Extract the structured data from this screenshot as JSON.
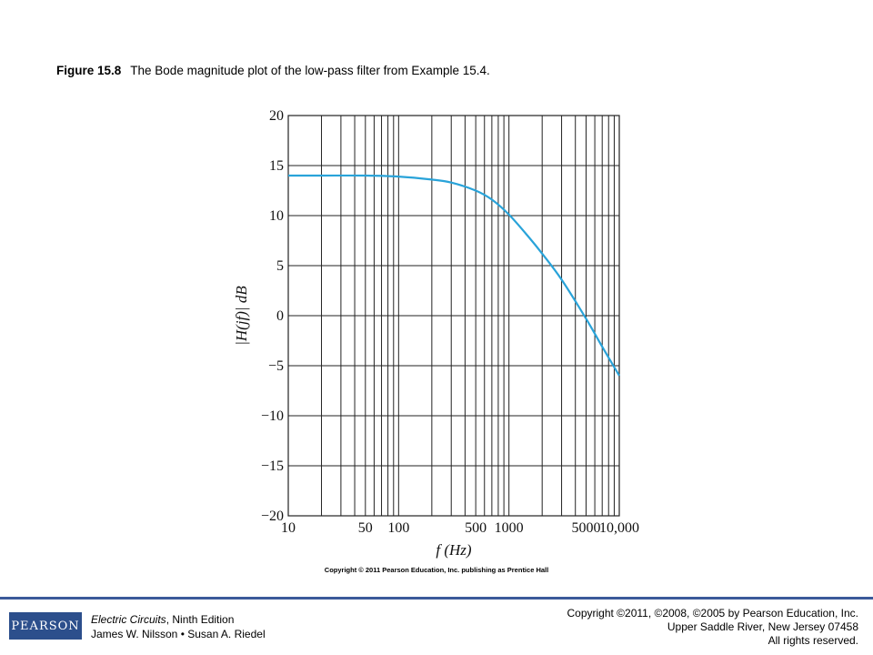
{
  "caption": {
    "figure_number": "Figure 15.8",
    "text": "The Bode magnitude plot of the low-pass filter from Example 15.4."
  },
  "chart_data": {
    "type": "line",
    "title": "",
    "xlabel": "f (Hz)",
    "ylabel": "|H(jf)| dB",
    "x_scale": "log",
    "xlim": [
      10,
      10000
    ],
    "ylim": [
      -20,
      20
    ],
    "x_tick_labels": [
      "10",
      "50",
      "100",
      "500",
      "1000",
      "5000",
      "10,000"
    ],
    "x_tick_values": [
      10,
      50,
      100,
      500,
      1000,
      5000,
      10000
    ],
    "y_tick_labels": [
      "20",
      "15",
      "10",
      "5",
      "0",
      "−5",
      "−10",
      "−15",
      "−20"
    ],
    "y_tick_values": [
      20,
      15,
      10,
      5,
      0,
      -5,
      -10,
      -15,
      -20
    ],
    "grid": true,
    "line_color": "#29a3d9",
    "series": [
      {
        "x": [
          10,
          20,
          50,
          100,
          200,
          300,
          500,
          700,
          1000,
          1500,
          2000,
          3000,
          5000,
          7000,
          10000
        ],
        "y": [
          14,
          14,
          14,
          13.9,
          13.6,
          13.3,
          12.5,
          11.6,
          10.1,
          7.9,
          6.2,
          3.6,
          -0.3,
          -3.1,
          -6
        ]
      }
    ]
  },
  "credit": "Copyright © 2011 Pearson Education, Inc. publishing as Prentice Hall",
  "footer": {
    "logo_text": "PEARSON",
    "book_title": "Electric Circuits",
    "edition": ", Ninth Edition",
    "authors": "James W. Nilsson • Susan A. Riedel",
    "copyright_line1": "Copyright ©2011, ©2008, ©2005 by Pearson Education, Inc.",
    "copyright_line2": "Upper Saddle River, New Jersey 07458",
    "copyright_line3": "All rights reserved."
  }
}
